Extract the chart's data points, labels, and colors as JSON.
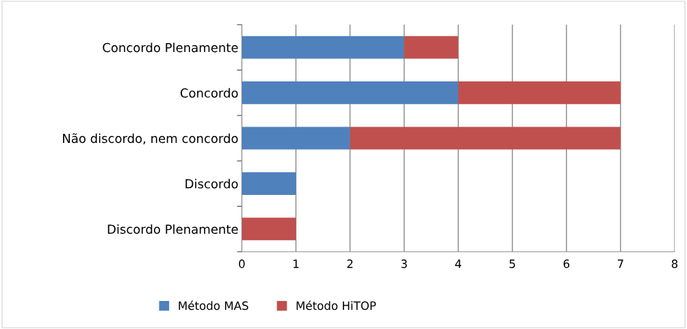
{
  "chart_data": {
    "type": "bar",
    "orientation": "horizontal",
    "stacked": true,
    "categories": [
      "Concordo Plenamente",
      "Concordo",
      "Não discordo, nem concordo",
      "Discordo",
      "Discordo Plenamente"
    ],
    "series": [
      {
        "name": "Método MAS",
        "color": "#4f81bd",
        "values": [
          3,
          4,
          2,
          1,
          0
        ]
      },
      {
        "name": "Método HiTOP",
        "color": "#c0504d",
        "values": [
          1,
          3,
          5,
          0,
          1
        ]
      }
    ],
    "xlim": [
      0,
      8
    ],
    "xticks": [
      0,
      1,
      2,
      3,
      4,
      5,
      6,
      7,
      8
    ],
    "grid": "x",
    "legend": "bottom"
  }
}
